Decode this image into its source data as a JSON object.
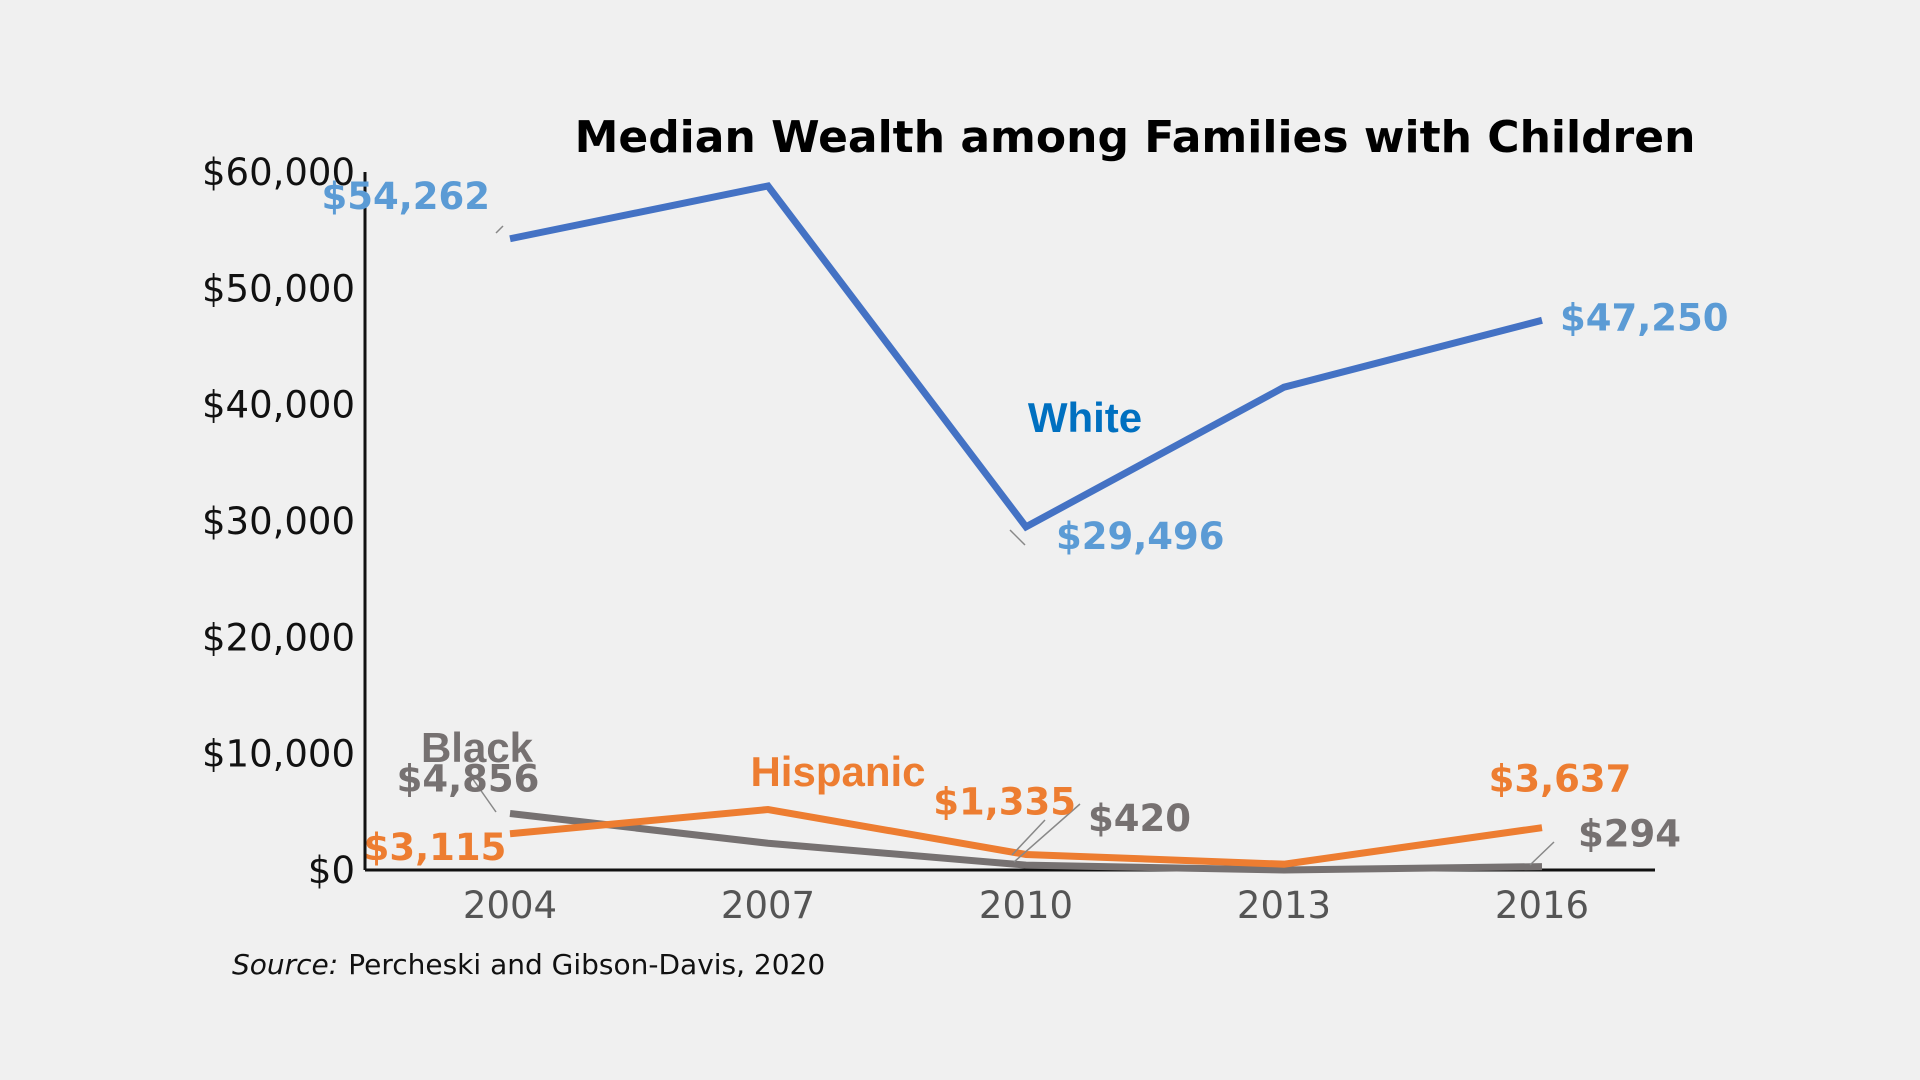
{
  "chart_data": {
    "type": "line",
    "title": "Median Wealth among Families with Children",
    "categories": [
      "2004",
      "2007",
      "2010",
      "2013",
      "2016"
    ],
    "ylim": [
      0,
      60000
    ],
    "yticks": [
      {
        "value": 0,
        "label": "$0"
      },
      {
        "value": 10000,
        "label": "$10,000"
      },
      {
        "value": 20000,
        "label": "$20,000"
      },
      {
        "value": 30000,
        "label": "$30,000"
      },
      {
        "value": 40000,
        "label": "$40,000"
      },
      {
        "value": 50000,
        "label": "$50,000"
      },
      {
        "value": 60000,
        "label": "$60,000"
      }
    ],
    "grid": false,
    "legend": "none",
    "series": [
      {
        "name": "White",
        "color": "#4472c4",
        "label_color": "#5b9bd5",
        "name_color": "#0070c0",
        "values": [
          54262,
          58800,
          29496,
          41500,
          47250
        ],
        "data_labels": [
          "$54,262",
          null,
          "$29,496",
          null,
          "$47,250"
        ]
      },
      {
        "name": "Black",
        "color": "#767171",
        "label_color": "#767171",
        "name_color": "#767171",
        "values": [
          4856,
          2300,
          420,
          0,
          294
        ],
        "data_labels": [
          "$4,856",
          null,
          "$420",
          null,
          "$294"
        ]
      },
      {
        "name": "Hispanic",
        "color": "#ed7d31",
        "label_color": "#ed7d31",
        "name_color": "#ed7d31",
        "values": [
          3115,
          5200,
          1335,
          500,
          3637
        ],
        "data_labels": [
          "$3,115",
          null,
          "$1,335",
          null,
          "$3,637"
        ]
      }
    ]
  },
  "source": {
    "label": "Source:",
    "text": "Percheski and Gibson-Davis, 2020"
  }
}
